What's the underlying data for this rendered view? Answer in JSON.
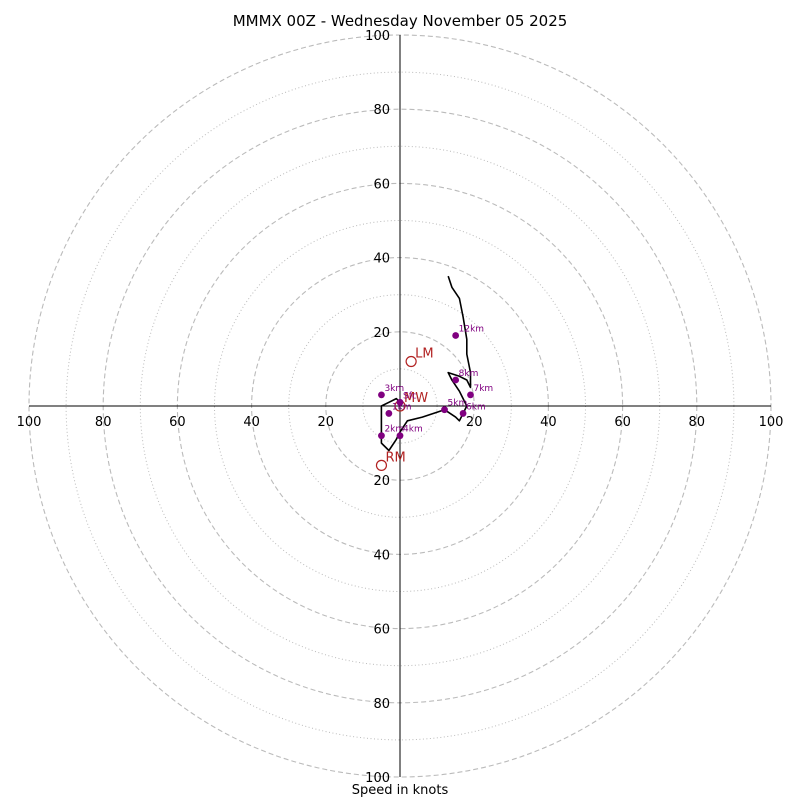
{
  "title": "MMMX 00Z - Wednesday November 05 2025",
  "xlabel": "Speed in knots",
  "chart_data": {
    "type": "scatter",
    "subtype": "hodograph",
    "title": "MMMX 00Z - Wednesday November 05 2025",
    "xlabel": "Speed in knots",
    "xlim": [
      -100,
      100
    ],
    "ylim": [
      -100,
      100
    ],
    "ring_major": [
      20,
      40,
      60,
      80,
      100
    ],
    "ring_minor": [
      10,
      30,
      50,
      70,
      90
    ],
    "tick_labels": [
      "20",
      "40",
      "60",
      "80",
      "100"
    ],
    "grid": true,
    "colors": {
      "trace": "#000000",
      "height_marker": "#800080",
      "storm_marker": "#b22222",
      "grid": "#bbbbbb"
    },
    "trace": [
      [
        0,
        1
      ],
      [
        -1,
        2
      ],
      [
        -3,
        1
      ],
      [
        -5,
        0
      ],
      [
        -5,
        -5
      ],
      [
        -5,
        -10
      ],
      [
        -3,
        -12
      ],
      [
        -1,
        -9
      ],
      [
        0,
        -7
      ],
      [
        2,
        -4
      ],
      [
        6,
        -3
      ],
      [
        12,
        -1
      ],
      [
        15,
        -3
      ],
      [
        16,
        -4
      ],
      [
        17,
        -2
      ],
      [
        18,
        0
      ],
      [
        17,
        2
      ],
      [
        16,
        4
      ],
      [
        14,
        7
      ],
      [
        13,
        9
      ],
      [
        16,
        8
      ],
      [
        18,
        7
      ],
      [
        19,
        5
      ],
      [
        19,
        9
      ],
      [
        18,
        14
      ],
      [
        18,
        18
      ],
      [
        17,
        24
      ],
      [
        16,
        29
      ],
      [
        14,
        32
      ],
      [
        13,
        35
      ]
    ],
    "height_markers": [
      {
        "label": "Sfc",
        "x": 0,
        "y": 1
      },
      {
        "label": "1km",
        "x": -3,
        "y": -2
      },
      {
        "label": "2km",
        "x": -5,
        "y": -8
      },
      {
        "label": "3km",
        "x": -5,
        "y": 3
      },
      {
        "label": "4km",
        "x": 0,
        "y": -8
      },
      {
        "label": "5km",
        "x": 12,
        "y": -1
      },
      {
        "label": "6km",
        "x": 17,
        "y": -2
      },
      {
        "label": "7km",
        "x": 19,
        "y": 3
      },
      {
        "label": "8km",
        "x": 15,
        "y": 7
      },
      {
        "label": "12km",
        "x": 15,
        "y": 19
      }
    ],
    "storm_motion": [
      {
        "label": "LM",
        "x": 3,
        "y": 12
      },
      {
        "label": "MW",
        "x": 0,
        "y": 0
      },
      {
        "label": "RM",
        "x": -5,
        "y": -16
      }
    ]
  }
}
